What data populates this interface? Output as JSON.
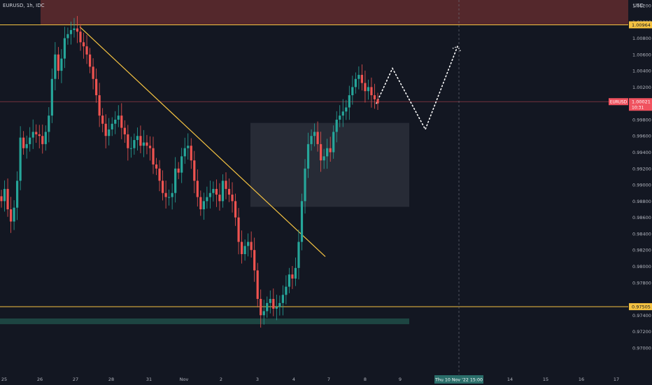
{
  "header": {
    "title": "EURUSD, 1h, IDC",
    "currency": "USD"
  },
  "chart_data": {
    "type": "candlestick",
    "symbol": "EURUSD",
    "timeframe": "1h",
    "source": "IDC",
    "y_axis": {
      "ticks": [
        "1.01200",
        "1.01000",
        "1.00800",
        "1.00600",
        "1.00400",
        "1.00200",
        "0.99800",
        "0.99600",
        "0.99400",
        "0.99200",
        "0.99000",
        "0.98800",
        "0.98600",
        "0.98400",
        "0.98200",
        "0.98000",
        "0.97800",
        "0.97400",
        "0.97200",
        "0.97000"
      ],
      "ylim": [
        0.969,
        1.0134
      ]
    },
    "x_axis": {
      "ticks": [
        "25",
        "26",
        "27",
        "28",
        "31",
        "Nov",
        "2",
        "3",
        "4",
        "7",
        "8",
        "9",
        "14",
        "15",
        "16",
        "17"
      ],
      "crosshair_label": "Thu 10 Nov '22   15:00"
    },
    "price_labels": [
      {
        "id": "resistance",
        "text": "1.00964",
        "price": 1.00964,
        "color": "#f5c342"
      },
      {
        "id": "support",
        "text": "0.97505",
        "price": 0.97505,
        "color": "#f5c342"
      },
      {
        "id": "current",
        "name": "EURUSD",
        "text": "1.00021",
        "countdown": "10:31",
        "price": 1.00021,
        "color": "#f0525f"
      }
    ],
    "series": [
      {
        "name": "",
        "values": [
          0.988,
          0.9895,
          0.987,
          0.9855,
          0.9872,
          0.9905,
          0.9958,
          0.9945,
          0.995,
          0.9958,
          0.9965,
          0.9962,
          0.996,
          0.995,
          0.9965,
          0.9985,
          1.003,
          1.006,
          1.004,
          1.0055,
          1.008,
          1.0085,
          1.009,
          1.0092,
          1.0088,
          1.0075,
          1.007,
          1.006,
          1.0045,
          1.003,
          1.001,
          0.9985,
          0.9975,
          0.996,
          0.9968,
          0.9975,
          0.998,
          0.9985,
          0.997,
          0.9962,
          0.9945,
          0.9945,
          0.9955,
          0.996,
          0.9948,
          0.9952,
          0.9948,
          0.9945,
          0.9925,
          0.992,
          0.9905,
          0.989,
          0.9885,
          0.9885,
          0.989,
          0.992,
          0.9915,
          0.9935,
          0.9945,
          0.9948,
          0.993,
          0.9905,
          0.9885,
          0.987,
          0.988,
          0.9885,
          0.989,
          0.9895,
          0.9888,
          0.988,
          0.9905,
          0.9895,
          0.9888,
          0.988,
          0.986,
          0.983,
          0.9815,
          0.9825,
          0.983,
          0.982,
          0.9795,
          0.976,
          0.974,
          0.9745,
          0.9755,
          0.976,
          0.9748,
          0.975,
          0.9755,
          0.9765,
          0.9775,
          0.979,
          0.9785,
          0.9798,
          0.983,
          0.988,
          0.992,
          0.995,
          0.996,
          0.9965,
          0.995,
          0.993,
          0.9935,
          0.9945,
          0.994,
          0.9965,
          0.998,
          0.9985,
          0.999,
          0.9995,
          1.001,
          1.002,
          1.003,
          1.0035,
          1.0025,
          1.0015,
          1.002,
          1.001,
          1.0005,
          1.0
        ]
      }
    ],
    "zones": [
      {
        "id": "supply",
        "from": 1.0134,
        "to": 1.00964,
        "color": "#5c2a2e"
      },
      {
        "id": "fvg-box",
        "from": 0.9976,
        "to": 0.9873,
        "color": "#2a2d38"
      },
      {
        "id": "demand",
        "from": 0.9736,
        "to": 0.9729,
        "color": "#1f4a46"
      }
    ],
    "drawings": [
      {
        "id": "trendline",
        "type": "line",
        "color": "#f5c342",
        "from": {
          "x": "27",
          "y": 1.0094
        },
        "to": {
          "x": "4",
          "y": 0.9812
        }
      },
      {
        "id": "projection",
        "type": "dotted-path",
        "color": "#ffffff",
        "points": [
          1.0,
          1.0043,
          0.9968,
          1.007
        ]
      }
    ],
    "legend": "none",
    "grid": false
  }
}
